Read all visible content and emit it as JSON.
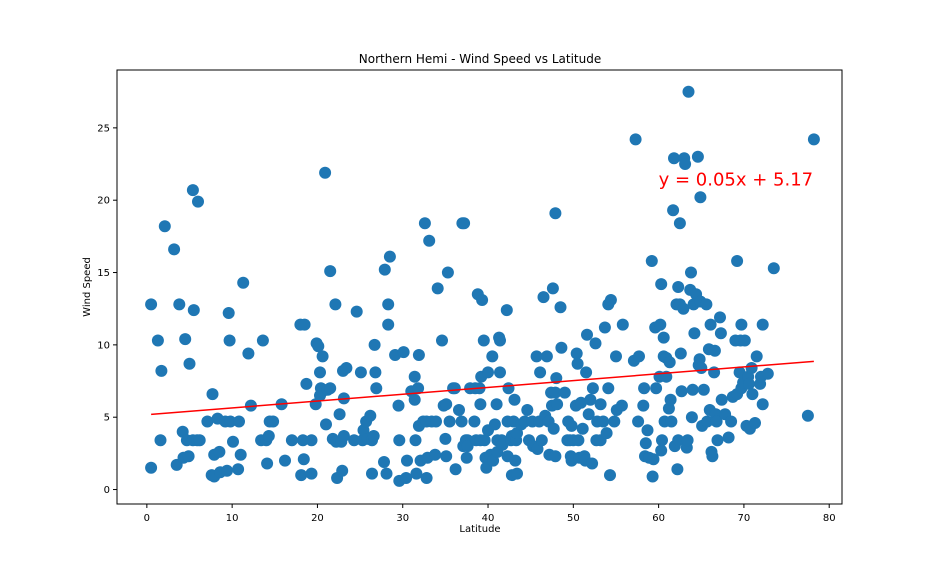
{
  "chart_data": {
    "type": "scatter",
    "title": "Northern Hemi - Wind Speed vs Latitude",
    "xlabel": "Latitude",
    "ylabel": "Wind Speed",
    "xlim": [
      -3.5,
      81.5
    ],
    "ylim": [
      -1.0,
      29.0
    ],
    "xticks": [
      0,
      10,
      20,
      30,
      40,
      50,
      60,
      70,
      80
    ],
    "yticks": [
      0,
      5,
      10,
      15,
      20,
      25
    ],
    "point_color": "#1f77b4",
    "line_color": "#ff0000",
    "grid": false,
    "regression": {
      "equation": "y = 0.05x + 5.17",
      "slope": 0.0472,
      "intercept": 5.17,
      "x_range": [
        0.5,
        78.2
      ],
      "annotation_at": [
        60,
        21
      ]
    },
    "points": [
      [
        0.5,
        12.8
      ],
      [
        0.5,
        1.5
      ],
      [
        1.3,
        10.3
      ],
      [
        1.6,
        3.4
      ],
      [
        1.7,
        8.2
      ],
      [
        2.1,
        18.2
      ],
      [
        3.2,
        16.6
      ],
      [
        3.5,
        1.7
      ],
      [
        3.8,
        12.8
      ],
      [
        4.2,
        4.0
      ],
      [
        4.3,
        2.2
      ],
      [
        4.5,
        10.4
      ],
      [
        4.7,
        3.4
      ],
      [
        4.9,
        2.3
      ],
      [
        5.0,
        8.7
      ],
      [
        5.4,
        20.7
      ],
      [
        5.4,
        3.4
      ],
      [
        5.5,
        12.4
      ],
      [
        5.9,
        3.4
      ],
      [
        6.0,
        19.9
      ],
      [
        6.2,
        3.4
      ],
      [
        7.1,
        4.7
      ],
      [
        7.6,
        1.0
      ],
      [
        7.7,
        6.6
      ],
      [
        7.9,
        2.4
      ],
      [
        7.9,
        0.9
      ],
      [
        8.3,
        4.9
      ],
      [
        8.5,
        2.6
      ],
      [
        8.6,
        1.2
      ],
      [
        9.2,
        4.7
      ],
      [
        9.4,
        1.3
      ],
      [
        9.6,
        12.2
      ],
      [
        9.7,
        10.3
      ],
      [
        9.8,
        4.7
      ],
      [
        10.1,
        3.3
      ],
      [
        10.7,
        1.4
      ],
      [
        10.8,
        4.7
      ],
      [
        11.0,
        2.4
      ],
      [
        11.3,
        14.3
      ],
      [
        11.9,
        9.4
      ],
      [
        12.2,
        5.8
      ],
      [
        13.4,
        3.4
      ],
      [
        13.6,
        10.3
      ],
      [
        14.0,
        3.4
      ],
      [
        14.1,
        1.8
      ],
      [
        14.3,
        3.7
      ],
      [
        14.4,
        4.7
      ],
      [
        14.8,
        4.7
      ],
      [
        15.8,
        5.9
      ],
      [
        16.2,
        2.0
      ],
      [
        17.0,
        3.4
      ],
      [
        18.0,
        11.4
      ],
      [
        18.1,
        1.0
      ],
      [
        18.3,
        3.4
      ],
      [
        18.4,
        2.1
      ],
      [
        18.5,
        11.4
      ],
      [
        18.7,
        7.3
      ],
      [
        19.3,
        1.1
      ],
      [
        19.3,
        3.4
      ],
      [
        19.8,
        5.9
      ],
      [
        19.9,
        10.1
      ],
      [
        20.1,
        9.9
      ],
      [
        20.3,
        8.1
      ],
      [
        20.3,
        6.5
      ],
      [
        20.4,
        7.0
      ],
      [
        20.6,
        9.2
      ],
      [
        20.6,
        6.8
      ],
      [
        20.9,
        21.9
      ],
      [
        21.0,
        4.5
      ],
      [
        21.2,
        6.9
      ],
      [
        21.5,
        15.1
      ],
      [
        21.5,
        7.0
      ],
      [
        21.8,
        3.5
      ],
      [
        22.1,
        12.8
      ],
      [
        22.2,
        3.3
      ],
      [
        22.3,
        0.8
      ],
      [
        22.6,
        5.2
      ],
      [
        22.8,
        3.3
      ],
      [
        22.9,
        1.3
      ],
      [
        23.0,
        8.2
      ],
      [
        23.1,
        6.3
      ],
      [
        23.1,
        3.7
      ],
      [
        23.4,
        8.4
      ],
      [
        24.3,
        3.4
      ],
      [
        24.6,
        12.3
      ],
      [
        25.1,
        8.1
      ],
      [
        25.3,
        3.4
      ],
      [
        25.4,
        4.1
      ],
      [
        25.7,
        4.7
      ],
      [
        25.9,
        3.5
      ],
      [
        26.2,
        5.1
      ],
      [
        26.4,
        3.4
      ],
      [
        26.4,
        1.1
      ],
      [
        26.6,
        3.7
      ],
      [
        26.7,
        10.0
      ],
      [
        26.8,
        8.1
      ],
      [
        26.9,
        7.0
      ],
      [
        27.8,
        1.9
      ],
      [
        27.9,
        15.2
      ],
      [
        28.1,
        1.1
      ],
      [
        28.3,
        11.4
      ],
      [
        28.3,
        12.8
      ],
      [
        28.5,
        16.1
      ],
      [
        29.1,
        9.3
      ],
      [
        29.5,
        5.8
      ],
      [
        29.6,
        3.4
      ],
      [
        29.6,
        0.6
      ],
      [
        30.1,
        9.5
      ],
      [
        30.4,
        0.8
      ],
      [
        30.5,
        2.0
      ],
      [
        31.0,
        6.8
      ],
      [
        31.4,
        7.8
      ],
      [
        31.4,
        6.2
      ],
      [
        31.5,
        3.4
      ],
      [
        31.6,
        1.1
      ],
      [
        31.8,
        7.0
      ],
      [
        31.9,
        9.3
      ],
      [
        31.9,
        4.4
      ],
      [
        32.1,
        2.0
      ],
      [
        32.4,
        4.7
      ],
      [
        32.6,
        18.4
      ],
      [
        32.8,
        4.7
      ],
      [
        32.8,
        0.8
      ],
      [
        32.9,
        2.2
      ],
      [
        33.1,
        17.2
      ],
      [
        33.4,
        4.7
      ],
      [
        33.8,
        2.4
      ],
      [
        33.9,
        4.7
      ],
      [
        34.1,
        13.9
      ],
      [
        34.6,
        10.3
      ],
      [
        34.8,
        5.8
      ],
      [
        35.0,
        3.5
      ],
      [
        35.1,
        5.9
      ],
      [
        35.1,
        2.3
      ],
      [
        35.3,
        15.0
      ],
      [
        35.5,
        4.7
      ],
      [
        35.9,
        7.0
      ],
      [
        36.1,
        7.0
      ],
      [
        36.2,
        1.4
      ],
      [
        36.6,
        5.5
      ],
      [
        36.9,
        4.7
      ],
      [
        37.0,
        18.4
      ],
      [
        37.1,
        3.0
      ],
      [
        37.2,
        18.4
      ],
      [
        37.4,
        3.4
      ],
      [
        37.5,
        2.2
      ],
      [
        37.6,
        3.4
      ],
      [
        37.6,
        3.0
      ],
      [
        37.9,
        7.0
      ],
      [
        38.4,
        4.7
      ],
      [
        38.5,
        7.0
      ],
      [
        38.6,
        3.4
      ],
      [
        38.8,
        13.5
      ],
      [
        39.0,
        7.0
      ],
      [
        39.1,
        5.9
      ],
      [
        39.1,
        3.4
      ],
      [
        39.2,
        7.8
      ],
      [
        39.3,
        13.1
      ],
      [
        39.5,
        10.3
      ],
      [
        39.6,
        3.4
      ],
      [
        39.7,
        2.2
      ],
      [
        39.8,
        1.5
      ],
      [
        40.0,
        4.1
      ],
      [
        40.0,
        8.1
      ],
      [
        40.3,
        2.4
      ],
      [
        40.5,
        9.2
      ],
      [
        40.6,
        2.0
      ],
      [
        40.8,
        4.5
      ],
      [
        41.0,
        5.9
      ],
      [
        41.1,
        3.4
      ],
      [
        41.1,
        2.6
      ],
      [
        41.3,
        10.5
      ],
      [
        41.4,
        8.1
      ],
      [
        41.4,
        10.3
      ],
      [
        41.6,
        3.4
      ],
      [
        41.7,
        3.1
      ],
      [
        42.2,
        12.4
      ],
      [
        42.3,
        4.7
      ],
      [
        42.3,
        2.3
      ],
      [
        42.4,
        7.0
      ],
      [
        42.7,
        3.4
      ],
      [
        42.8,
        1.0
      ],
      [
        42.8,
        3.7
      ],
      [
        43.0,
        4.7
      ],
      [
        43.1,
        6.2
      ],
      [
        43.1,
        3.6
      ],
      [
        43.2,
        2.0
      ],
      [
        43.3,
        3.4
      ],
      [
        43.4,
        1.1
      ],
      [
        43.4,
        3.9
      ],
      [
        43.9,
        4.5
      ],
      [
        44.3,
        4.7
      ],
      [
        44.6,
        5.5
      ],
      [
        44.8,
        3.4
      ],
      [
        45.2,
        4.7
      ],
      [
        45.3,
        3.0
      ],
      [
        45.7,
        9.2
      ],
      [
        45.8,
        2.8
      ],
      [
        46.0,
        4.7
      ],
      [
        46.1,
        8.1
      ],
      [
        46.3,
        3.4
      ],
      [
        46.5,
        13.3
      ],
      [
        46.7,
        5.1
      ],
      [
        46.9,
        9.2
      ],
      [
        47.1,
        4.7
      ],
      [
        47.2,
        2.4
      ],
      [
        47.4,
        6.7
      ],
      [
        47.5,
        5.8
      ],
      [
        47.6,
        13.9
      ],
      [
        47.7,
        4.2
      ],
      [
        47.9,
        19.1
      ],
      [
        47.9,
        2.3
      ],
      [
        47.9,
        6.7
      ],
      [
        48.0,
        7.7
      ],
      [
        48.1,
        5.9
      ],
      [
        48.5,
        12.6
      ],
      [
        48.6,
        9.8
      ],
      [
        49.0,
        6.7
      ],
      [
        49.3,
        3.4
      ],
      [
        49.4,
        4.7
      ],
      [
        49.6,
        3.4
      ],
      [
        49.7,
        2.3
      ],
      [
        49.8,
        2.0
      ],
      [
        49.8,
        4.4
      ],
      [
        50.0,
        3.4
      ],
      [
        50.3,
        5.8
      ],
      [
        50.4,
        9.4
      ],
      [
        50.5,
        8.7
      ],
      [
        50.6,
        3.4
      ],
      [
        50.7,
        2.2
      ],
      [
        50.9,
        6.0
      ],
      [
        51.1,
        4.2
      ],
      [
        51.3,
        2.3
      ],
      [
        51.4,
        2.0
      ],
      [
        51.5,
        8.1
      ],
      [
        51.6,
        10.7
      ],
      [
        51.8,
        5.2
      ],
      [
        52.0,
        6.2
      ],
      [
        52.2,
        1.8
      ],
      [
        52.3,
        7.0
      ],
      [
        52.6,
        10.1
      ],
      [
        52.7,
        3.4
      ],
      [
        52.8,
        4.7
      ],
      [
        53.2,
        3.4
      ],
      [
        53.2,
        5.9
      ],
      [
        53.5,
        4.7
      ],
      [
        53.7,
        11.2
      ],
      [
        53.9,
        3.9
      ],
      [
        54.1,
        7.0
      ],
      [
        54.1,
        12.8
      ],
      [
        54.3,
        1.0
      ],
      [
        54.4,
        13.1
      ],
      [
        54.8,
        4.7
      ],
      [
        55.0,
        9.2
      ],
      [
        55.1,
        5.5
      ],
      [
        55.7,
        5.8
      ],
      [
        55.8,
        11.4
      ],
      [
        57.1,
        8.9
      ],
      [
        57.3,
        24.2
      ],
      [
        57.6,
        4.7
      ],
      [
        57.7,
        9.2
      ],
      [
        58.2,
        5.8
      ],
      [
        58.3,
        7.0
      ],
      [
        58.4,
        2.3
      ],
      [
        58.5,
        3.2
      ],
      [
        58.7,
        4.1
      ],
      [
        58.9,
        2.2
      ],
      [
        59.2,
        15.8
      ],
      [
        59.3,
        0.9
      ],
      [
        59.4,
        2.1
      ],
      [
        59.6,
        11.2
      ],
      [
        59.7,
        7.0
      ],
      [
        60.1,
        7.8
      ],
      [
        60.2,
        11.4
      ],
      [
        60.3,
        14.2
      ],
      [
        60.3,
        2.7
      ],
      [
        60.4,
        3.4
      ],
      [
        60.6,
        10.5
      ],
      [
        60.6,
        9.2
      ],
      [
        60.7,
        4.7
      ],
      [
        60.9,
        9.1
      ],
      [
        60.9,
        7.8
      ],
      [
        61.2,
        5.6
      ],
      [
        61.3,
        8.8
      ],
      [
        61.4,
        6.2
      ],
      [
        61.5,
        4.7
      ],
      [
        61.7,
        19.3
      ],
      [
        61.8,
        22.9
      ],
      [
        61.9,
        3.0
      ],
      [
        62.1,
        12.8
      ],
      [
        62.2,
        1.4
      ],
      [
        62.3,
        14.0
      ],
      [
        62.3,
        3.4
      ],
      [
        62.5,
        18.4
      ],
      [
        62.5,
        12.8
      ],
      [
        62.6,
        9.4
      ],
      [
        62.7,
        6.8
      ],
      [
        62.9,
        12.5
      ],
      [
        63.0,
        22.9
      ],
      [
        63.1,
        22.5
      ],
      [
        63.3,
        2.9
      ],
      [
        63.4,
        3.4
      ],
      [
        63.5,
        27.5
      ],
      [
        63.7,
        13.8
      ],
      [
        63.8,
        15.0
      ],
      [
        63.9,
        5.0
      ],
      [
        64.0,
        6.9
      ],
      [
        64.1,
        12.8
      ],
      [
        64.2,
        10.8
      ],
      [
        64.4,
        13.5
      ],
      [
        64.6,
        23.0
      ],
      [
        64.7,
        8.6
      ],
      [
        64.8,
        9.0
      ],
      [
        64.9,
        20.2
      ],
      [
        64.9,
        13.0
      ],
      [
        65.0,
        8.4
      ],
      [
        65.1,
        4.4
      ],
      [
        65.3,
        6.9
      ],
      [
        65.6,
        12.8
      ],
      [
        65.7,
        4.7
      ],
      [
        65.9,
        9.7
      ],
      [
        66.0,
        5.5
      ],
      [
        66.1,
        11.4
      ],
      [
        66.2,
        2.6
      ],
      [
        66.3,
        2.3
      ],
      [
        66.5,
        8.1
      ],
      [
        66.6,
        9.6
      ],
      [
        66.7,
        5.2
      ],
      [
        66.8,
        4.7
      ],
      [
        66.9,
        3.4
      ],
      [
        67.2,
        11.9
      ],
      [
        67.3,
        10.8
      ],
      [
        67.4,
        6.2
      ],
      [
        67.8,
        5.2
      ],
      [
        68.2,
        3.6
      ],
      [
        68.5,
        4.7
      ],
      [
        68.7,
        6.4
      ],
      [
        69.0,
        10.3
      ],
      [
        69.2,
        15.8
      ],
      [
        69.2,
        6.6
      ],
      [
        69.5,
        8.1
      ],
      [
        69.6,
        10.3
      ],
      [
        69.7,
        7.0
      ],
      [
        69.7,
        11.4
      ],
      [
        69.9,
        7.4
      ],
      [
        70.1,
        10.3
      ],
      [
        70.3,
        4.4
      ],
      [
        70.5,
        7.8
      ],
      [
        70.6,
        7.3
      ],
      [
        70.7,
        4.2
      ],
      [
        70.9,
        8.4
      ],
      [
        71.0,
        6.6
      ],
      [
        71.3,
        4.6
      ],
      [
        71.5,
        9.2
      ],
      [
        71.9,
        7.3
      ],
      [
        72.0,
        7.8
      ],
      [
        72.2,
        5.9
      ],
      [
        72.2,
        11.4
      ],
      [
        72.8,
        8.0
      ],
      [
        73.5,
        15.3
      ],
      [
        77.5,
        5.1
      ],
      [
        78.2,
        24.2
      ]
    ]
  }
}
